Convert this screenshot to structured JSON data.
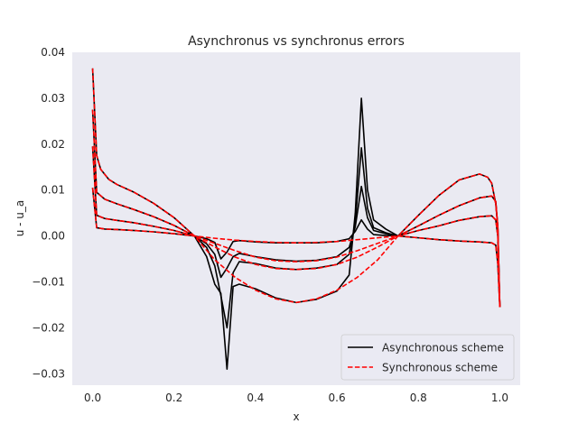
{
  "chart_data": {
    "type": "line",
    "title": "Asynchronus vs synchronus errors",
    "xlabel": "x",
    "ylabel": "u - u_a",
    "xlim": [
      -0.05,
      1.05
    ],
    "ylim": [
      -0.0325,
      0.04
    ],
    "xticks": [
      0.0,
      0.2,
      0.4,
      0.6,
      0.8,
      1.0
    ],
    "xtick_labels": [
      "0.0",
      "0.2",
      "0.4",
      "0.6",
      "0.8",
      "1.0"
    ],
    "yticks": [
      -0.03,
      -0.02,
      -0.01,
      0.0,
      0.01,
      0.02,
      0.03,
      0.04
    ],
    "ytick_labels": [
      "−0.03",
      "−0.02",
      "−0.01",
      "0.00",
      "0.01",
      "0.02",
      "0.03",
      "0.04"
    ],
    "grid": false,
    "background": "#eaeaf2",
    "legend_position": "lower-right",
    "legend": [
      {
        "label": "Asynchronous scheme",
        "color": "#000000",
        "style": "solid"
      },
      {
        "label": "Synchronous scheme",
        "color": "#ff0000",
        "style": "dashed"
      }
    ],
    "series": [
      {
        "color": "#000000",
        "style": "solid",
        "x": [
          0.0,
          0.01,
          0.03,
          0.06,
          0.1,
          0.15,
          0.2,
          0.25,
          0.28,
          0.3,
          0.315,
          0.33,
          0.345,
          0.36,
          0.4,
          0.45,
          0.5,
          0.55,
          0.6,
          0.63,
          0.645,
          0.66,
          0.675,
          0.69,
          0.72,
          0.75,
          0.8,
          0.85,
          0.9,
          0.95,
          0.98,
          0.99,
          0.995,
          1.0
        ],
        "y": [
          0.0105,
          0.0018,
          0.0015,
          0.0014,
          0.0012,
          0.0009,
          0.0005,
          0.0,
          -0.0006,
          -0.0014,
          -0.005,
          -0.0035,
          -0.0012,
          -0.001,
          -0.0013,
          -0.0015,
          -0.0015,
          -0.0015,
          -0.0012,
          -0.0006,
          0.001,
          0.0035,
          0.0015,
          0.0003,
          0.0001,
          0.0,
          -0.0004,
          -0.0008,
          -0.0011,
          -0.0013,
          -0.0015,
          -0.002,
          -0.006,
          -0.0155
        ]
      },
      {
        "color": "#000000",
        "style": "solid",
        "x": [
          0.0,
          0.01,
          0.03,
          0.06,
          0.1,
          0.15,
          0.2,
          0.25,
          0.28,
          0.3,
          0.315,
          0.33,
          0.345,
          0.36,
          0.4,
          0.45,
          0.5,
          0.55,
          0.6,
          0.63,
          0.645,
          0.66,
          0.675,
          0.69,
          0.72,
          0.75,
          0.8,
          0.85,
          0.9,
          0.95,
          0.98,
          0.99,
          0.995,
          1.0
        ],
        "y": [
          0.0195,
          0.0045,
          0.0038,
          0.0034,
          0.0029,
          0.0021,
          0.0012,
          0.0,
          -0.0017,
          -0.004,
          -0.009,
          -0.007,
          -0.0045,
          -0.0038,
          -0.0045,
          -0.0052,
          -0.0055,
          -0.0053,
          -0.0045,
          -0.0025,
          0.002,
          0.0108,
          0.004,
          0.0012,
          0.0005,
          0.0,
          0.0012,
          0.0022,
          0.0034,
          0.0042,
          0.0044,
          0.0035,
          0.0,
          -0.0155
        ]
      },
      {
        "color": "#000000",
        "style": "solid",
        "x": [
          0.0,
          0.01,
          0.03,
          0.06,
          0.1,
          0.15,
          0.2,
          0.25,
          0.28,
          0.3,
          0.315,
          0.33,
          0.345,
          0.36,
          0.4,
          0.45,
          0.5,
          0.55,
          0.6,
          0.63,
          0.645,
          0.66,
          0.675,
          0.69,
          0.72,
          0.75,
          0.8,
          0.85,
          0.9,
          0.95,
          0.98,
          0.99,
          0.995,
          1.0
        ],
        "y": [
          0.0275,
          0.0095,
          0.008,
          0.007,
          0.0058,
          0.0042,
          0.0023,
          0.0,
          -0.0025,
          -0.0065,
          -0.013,
          -0.02,
          -0.008,
          -0.0056,
          -0.006,
          -0.007,
          -0.0073,
          -0.007,
          -0.0062,
          -0.004,
          0.003,
          0.0192,
          0.006,
          0.0018,
          0.0007,
          0.0,
          0.0022,
          0.0045,
          0.0066,
          0.0083,
          0.0087,
          0.0075,
          0.002,
          -0.0155
        ]
      },
      {
        "color": "#000000",
        "style": "solid",
        "x": [
          0.0,
          0.01,
          0.02,
          0.04,
          0.06,
          0.1,
          0.15,
          0.2,
          0.25,
          0.28,
          0.3,
          0.315,
          0.33,
          0.345,
          0.36,
          0.4,
          0.45,
          0.5,
          0.55,
          0.6,
          0.63,
          0.645,
          0.66,
          0.675,
          0.69,
          0.72,
          0.75,
          0.8,
          0.85,
          0.9,
          0.95,
          0.97,
          0.98,
          0.99,
          0.995,
          1.0
        ],
        "y": [
          0.0365,
          0.0175,
          0.0145,
          0.0123,
          0.0112,
          0.0096,
          0.0071,
          0.004,
          0.0,
          -0.0045,
          -0.0105,
          -0.0125,
          -0.029,
          -0.011,
          -0.0105,
          -0.0115,
          -0.0135,
          -0.0145,
          -0.0138,
          -0.012,
          -0.0085,
          0.005,
          0.03,
          0.01,
          0.0035,
          0.0015,
          0.0,
          0.0045,
          0.0088,
          0.0122,
          0.0135,
          0.0128,
          0.0115,
          0.007,
          0.002,
          -0.0155
        ]
      },
      {
        "color": "#ff0000",
        "style": "dashed",
        "x": [
          0.0,
          0.01,
          0.03,
          0.06,
          0.1,
          0.15,
          0.2,
          0.25,
          0.3,
          0.35,
          0.4,
          0.45,
          0.5,
          0.55,
          0.6,
          0.65,
          0.7,
          0.75,
          0.8,
          0.85,
          0.9,
          0.95,
          0.98,
          0.99,
          0.995,
          1.0
        ],
        "y": [
          0.0105,
          0.0018,
          0.0015,
          0.0014,
          0.0012,
          0.0009,
          0.0005,
          0.0,
          -0.0005,
          -0.0009,
          -0.0012,
          -0.0014,
          -0.0015,
          -0.0014,
          -0.0012,
          -0.0008,
          -0.0004,
          0.0,
          -0.0004,
          -0.0008,
          -0.0011,
          -0.0013,
          -0.0015,
          -0.002,
          -0.006,
          -0.0155
        ]
      },
      {
        "color": "#ff0000",
        "style": "dashed",
        "x": [
          0.0,
          0.01,
          0.03,
          0.06,
          0.1,
          0.15,
          0.2,
          0.25,
          0.3,
          0.35,
          0.4,
          0.45,
          0.5,
          0.55,
          0.6,
          0.65,
          0.7,
          0.75,
          0.8,
          0.85,
          0.9,
          0.95,
          0.98,
          0.99,
          0.995,
          1.0
        ],
        "y": [
          0.0195,
          0.0045,
          0.0038,
          0.0034,
          0.0029,
          0.0021,
          0.0012,
          0.0,
          -0.0016,
          -0.0032,
          -0.0046,
          -0.0054,
          -0.0056,
          -0.0054,
          -0.0046,
          -0.0032,
          -0.0016,
          0.0,
          0.0012,
          0.0022,
          0.0034,
          0.0042,
          0.0044,
          0.0035,
          0.0,
          -0.0155
        ]
      },
      {
        "color": "#ff0000",
        "style": "dashed",
        "x": [
          0.0,
          0.01,
          0.03,
          0.06,
          0.1,
          0.15,
          0.2,
          0.25,
          0.3,
          0.35,
          0.4,
          0.45,
          0.5,
          0.55,
          0.6,
          0.65,
          0.7,
          0.75,
          0.8,
          0.85,
          0.9,
          0.95,
          0.98,
          0.99,
          0.995,
          1.0
        ],
        "y": [
          0.0275,
          0.0095,
          0.008,
          0.007,
          0.0058,
          0.0042,
          0.0023,
          0.0,
          -0.0024,
          -0.0046,
          -0.0062,
          -0.0071,
          -0.0073,
          -0.0071,
          -0.0062,
          -0.0046,
          -0.0024,
          0.0,
          0.0022,
          0.0045,
          0.0066,
          0.0083,
          0.0087,
          0.0075,
          0.002,
          -0.0155
        ]
      },
      {
        "color": "#ff0000",
        "style": "dashed",
        "x": [
          0.0,
          0.01,
          0.02,
          0.04,
          0.06,
          0.1,
          0.15,
          0.2,
          0.25,
          0.3,
          0.35,
          0.4,
          0.45,
          0.5,
          0.55,
          0.6,
          0.65,
          0.7,
          0.75,
          0.8,
          0.85,
          0.9,
          0.95,
          0.97,
          0.98,
          0.99,
          0.995,
          1.0
        ],
        "y": [
          0.0365,
          0.0175,
          0.0145,
          0.0123,
          0.0112,
          0.0096,
          0.0071,
          0.004,
          0.0,
          -0.0052,
          -0.009,
          -0.0118,
          -0.0137,
          -0.0145,
          -0.0137,
          -0.0118,
          -0.009,
          -0.0052,
          0.0,
          0.0045,
          0.0088,
          0.0122,
          0.0135,
          0.0128,
          0.0115,
          0.007,
          0.002,
          -0.0155
        ]
      }
    ]
  }
}
